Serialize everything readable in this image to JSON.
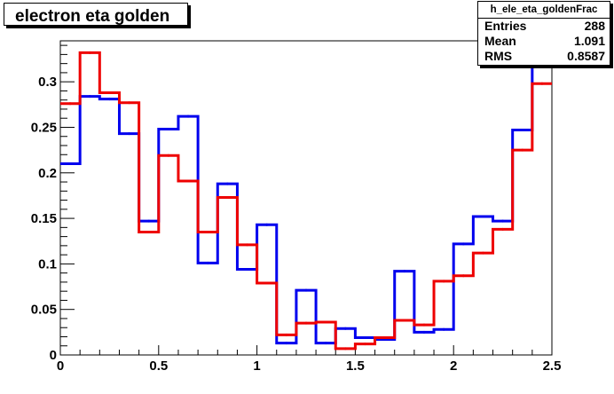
{
  "title": "electron eta golden",
  "stats": {
    "name": "h_ele_eta_goldenFrac",
    "rows": [
      {
        "label": "Entries",
        "value": "288"
      },
      {
        "label": "Mean",
        "value": "1.091"
      },
      {
        "label": "RMS",
        "value": "0.8587"
      }
    ]
  },
  "chart_data": {
    "type": "histogram",
    "title": "electron eta golden",
    "xlim": [
      0,
      2.5
    ],
    "ylim": [
      0,
      0.345
    ],
    "x_ticks": [
      {
        "value": 0,
        "label": "0"
      },
      {
        "value": 0.5,
        "label": "0.5"
      },
      {
        "value": 1,
        "label": "1"
      },
      {
        "value": 1.5,
        "label": "1.5"
      },
      {
        "value": 2,
        "label": "2"
      },
      {
        "value": 2.5,
        "label": "2.5"
      }
    ],
    "y_ticks": [
      {
        "value": 0,
        "label": "0"
      },
      {
        "value": 0.05,
        "label": "0.05"
      },
      {
        "value": 0.1,
        "label": "0.1"
      },
      {
        "value": 0.15,
        "label": "0.15"
      },
      {
        "value": 0.2,
        "label": "0.2"
      },
      {
        "value": 0.25,
        "label": "0.25"
      },
      {
        "value": 0.3,
        "label": "0.3"
      }
    ],
    "bin_edges": [
      0,
      0.1,
      0.2,
      0.3,
      0.4,
      0.5,
      0.6,
      0.7,
      0.8,
      0.9,
      1.0,
      1.1,
      1.2,
      1.3,
      1.4,
      1.5,
      1.6,
      1.7,
      1.8,
      1.9,
      2.0,
      2.1,
      2.2,
      2.3,
      2.4,
      2.5
    ],
    "series": [
      {
        "color": "#0000ee",
        "values": [
          0.21,
          0.284,
          0.281,
          0.243,
          0.147,
          0.248,
          0.262,
          0.101,
          0.188,
          0.094,
          0.143,
          0.013,
          0.071,
          0.013,
          0.029,
          0.019,
          0.017,
          0.092,
          0.025,
          0.028,
          0.122,
          0.152,
          0.147,
          0.247,
          0.33
        ]
      },
      {
        "color": "#ee0000",
        "values": [
          0.276,
          0.332,
          0.288,
          0.277,
          0.135,
          0.219,
          0.191,
          0.135,
          0.173,
          0.121,
          0.079,
          0.022,
          0.035,
          0.036,
          0.007,
          0.012,
          0.019,
          0.038,
          0.033,
          0.081,
          0.087,
          0.112,
          0.138,
          0.225,
          0.298
        ]
      }
    ]
  }
}
